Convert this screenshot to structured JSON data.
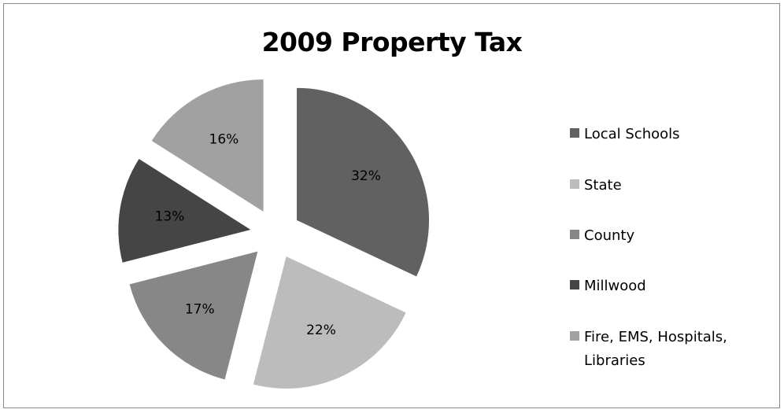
{
  "chart_data": {
    "type": "pie",
    "title": "2009 Property Tax",
    "categories": [
      "Local Schools",
      "State",
      "County",
      "Millwood",
      "Fire, EMS, Hospitals, Libraries"
    ],
    "values": [
      32,
      22,
      17,
      13,
      16
    ],
    "labels": [
      "32%",
      "22%",
      "17%",
      "13%",
      "16%"
    ],
    "colors": [
      "#616161",
      "#bcbcbc",
      "#878787",
      "#454545",
      "#a1a1a1"
    ],
    "exploded": true,
    "legend_position": "right"
  }
}
